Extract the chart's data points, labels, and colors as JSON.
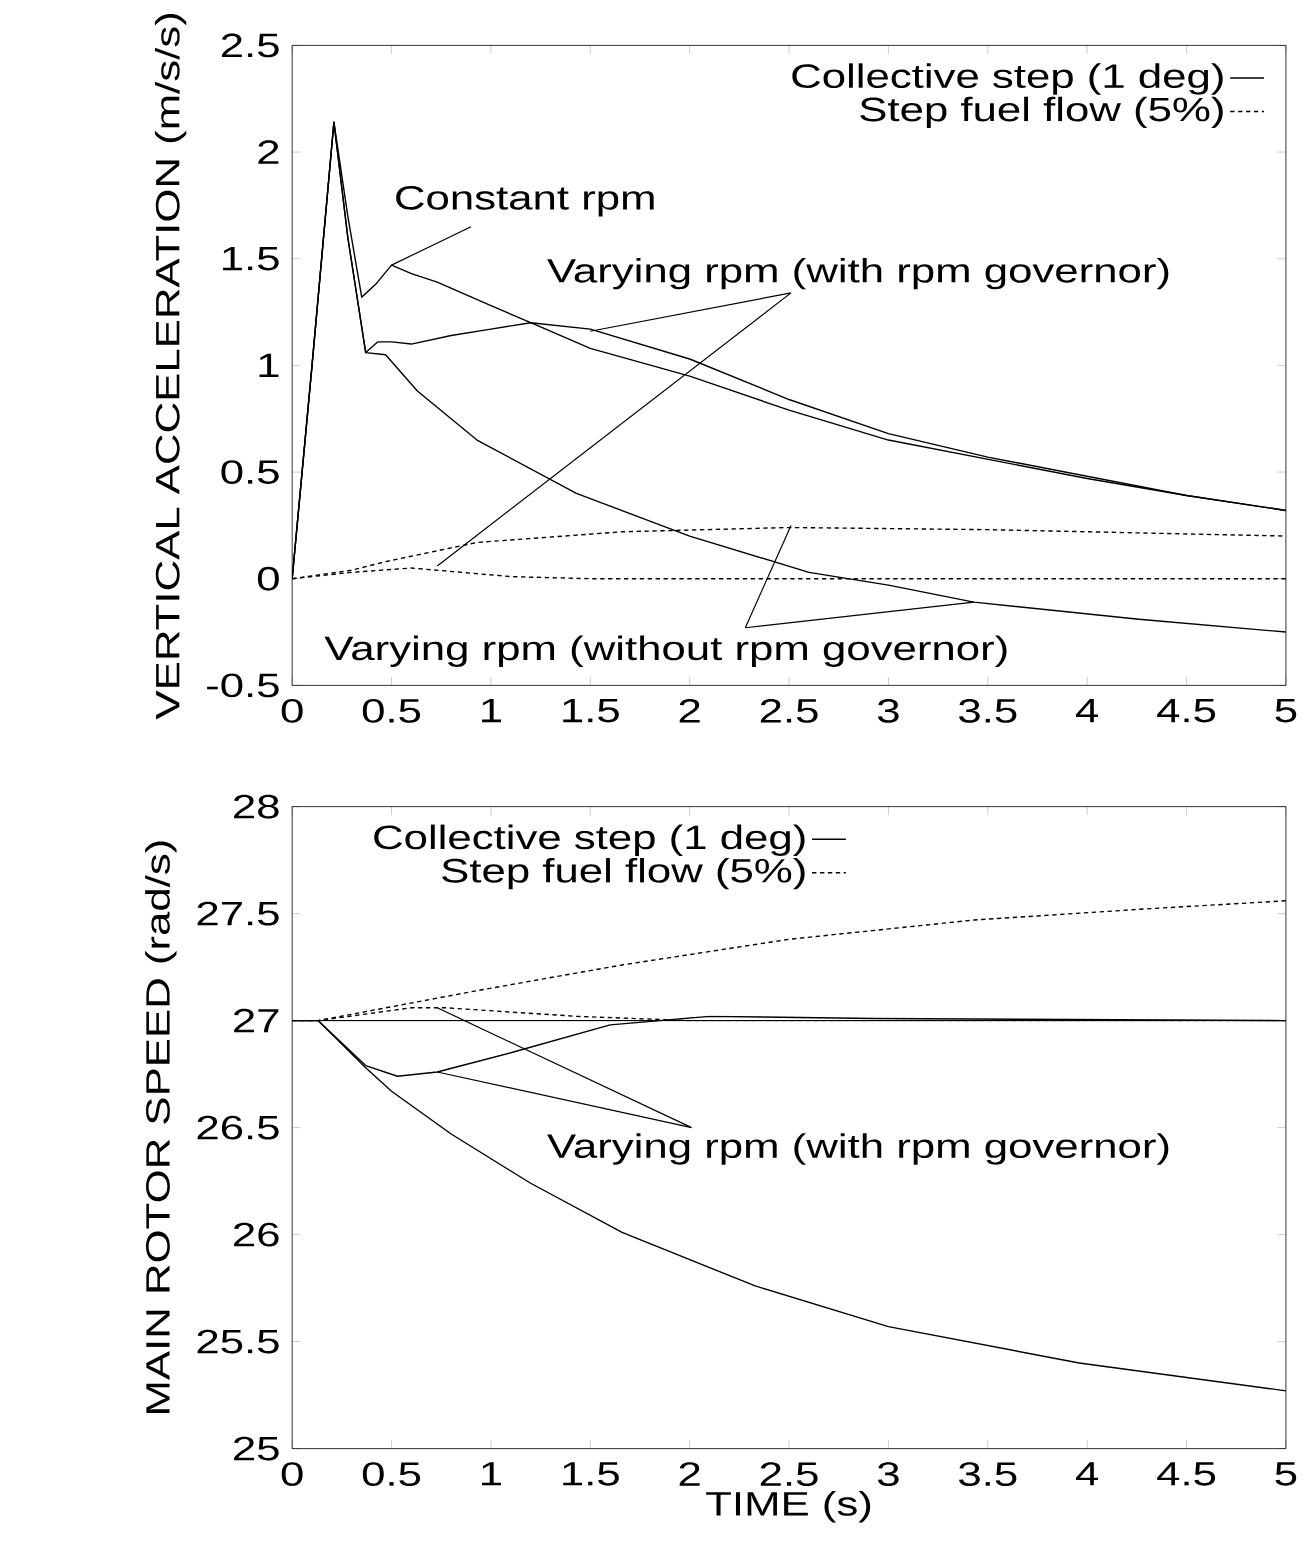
{
  "chart_data": [
    {
      "type": "line",
      "ylabel": "VERTICAL ACCELERATION (m/s/s)",
      "xlim": [
        0,
        5
      ],
      "ylim": [
        -0.5,
        2.5
      ],
      "xticks": [
        0,
        0.5,
        1,
        1.5,
        2,
        2.5,
        3,
        3.5,
        4,
        4.5,
        5
      ],
      "yticks": [
        -0.5,
        0,
        0.5,
        1,
        1.5,
        2,
        2.5
      ],
      "legend": "top right",
      "annotations": [
        {
          "text": "Constant rpm",
          "x": 0.5,
          "y": 1.47
        },
        {
          "text": "Varying rpm (with rpm governor)",
          "x": 1.5,
          "y": 1.16
        },
        {
          "text": "Varying rpm (without rpm governor)",
          "x": 3.43,
          "y": -0.11
        }
      ],
      "series": [
        {
          "name": "Collective step (1 deg)",
          "color": "#000000",
          "line_style": "solid",
          "x": [
            0,
            0.1,
            0.21,
            0.28,
            0.35,
            0.42,
            0.5,
            0.6,
            0.73,
            1.0,
            1.2,
            1.5,
            2.0,
            2.5,
            3.0,
            3.5,
            4.0,
            4.5,
            5.0
          ],
          "values": [
            0,
            1.0,
            2.14,
            1.7,
            1.32,
            1.38,
            1.47,
            1.43,
            1.39,
            1.28,
            1.2,
            1.08,
            0.95,
            0.79,
            0.65,
            0.56,
            0.47,
            0.39,
            0.32
          ]
        },
        {
          "name": "Step fuel flow (5%)",
          "color": "#000000",
          "line_style": "dashed",
          "x": [
            0,
            0.3,
            0.47,
            0.93,
            1.66,
            2.5,
            3.5,
            5.0
          ],
          "values": [
            0,
            0.04,
            0.08,
            0.17,
            0.22,
            0.24,
            0.23,
            0.2
          ]
        },
        {
          "color": "#000000",
          "line_style": "solid",
          "x": [
            0,
            0.1,
            0.21,
            0.28,
            0.37,
            0.43,
            0.5,
            0.6,
            0.8,
            1.0,
            1.2,
            1.5,
            2.0,
            2.5,
            3.0,
            3.5,
            4.0,
            4.5,
            5.0
          ],
          "values": [
            0,
            1.0,
            2.14,
            1.6,
            1.06,
            1.11,
            1.11,
            1.1,
            1.14,
            1.17,
            1.2,
            1.17,
            1.03,
            0.84,
            0.68,
            0.57,
            0.48,
            0.39,
            0.32
          ]
        },
        {
          "color": "#000000",
          "line_style": "solid",
          "x": [
            0,
            0.1,
            0.21,
            0.28,
            0.37,
            0.47,
            0.63,
            0.93,
            1.43,
            2.0,
            2.6,
            3.0,
            3.43,
            4.26,
            5.0
          ],
          "values": [
            0,
            1.0,
            2.14,
            1.6,
            1.06,
            1.05,
            0.88,
            0.65,
            0.4,
            0.2,
            0.03,
            -0.03,
            -0.11,
            -0.19,
            -0.25
          ]
        },
        {
          "color": "#000000",
          "line_style": "dashed",
          "x": [
            0,
            0.3,
            0.6,
            1.1,
            1.5,
            2.5,
            5.0
          ],
          "values": [
            0,
            0.03,
            0.05,
            0.01,
            0,
            0,
            0
          ]
        }
      ]
    },
    {
      "type": "line",
      "xlabel": "TIME (s)",
      "ylabel": "MAIN ROTOR SPEED (rad/s)",
      "xlim": [
        0,
        5
      ],
      "ylim": [
        25,
        28
      ],
      "xticks": [
        0,
        0.5,
        1,
        1.5,
        2,
        2.5,
        3,
        3.5,
        4,
        4.5,
        5
      ],
      "yticks": [
        25,
        25.5,
        26,
        26.5,
        27,
        27.5,
        28
      ],
      "legend": "top left",
      "annotations": [
        {
          "text": "Varying rpm (with rpm governor)",
          "x": 0.73,
          "y": 26.76
        }
      ],
      "series": [
        {
          "name": "Collective step (1 deg)",
          "color": "#000000",
          "line_style": "solid",
          "x": [
            0,
            5
          ],
          "values": [
            27,
            27
          ]
        },
        {
          "name": "Step fuel flow (5%)",
          "color": "#000000",
          "line_style": "dashed",
          "x": [
            0,
            0.13,
            0.93,
            1.66,
            2.5,
            3.43,
            4.26,
            5
          ],
          "values": [
            27,
            27,
            27.14,
            27.26,
            27.38,
            27.47,
            27.52,
            27.56
          ]
        },
        {
          "color": "#000000",
          "line_style": "solid",
          "x": [
            0,
            0.13,
            0.37,
            0.53,
            0.73,
            1.1,
            1.6,
            2.1,
            2.93,
            5
          ],
          "values": [
            27,
            27,
            26.79,
            26.74,
            26.76,
            26.85,
            26.98,
            27.02,
            27.01,
            27
          ]
        },
        {
          "color": "#000000",
          "line_style": "solid",
          "x": [
            0,
            0.13,
            0.37,
            0.5,
            0.8,
            1.2,
            1.66,
            2.33,
            3.0,
            3.96,
            5
          ],
          "values": [
            27,
            27,
            26.78,
            26.67,
            26.47,
            26.24,
            26.01,
            25.76,
            25.57,
            25.4,
            25.27
          ]
        },
        {
          "color": "#000000",
          "line_style": "dashed",
          "x": [
            0,
            0.13,
            0.6,
            0.77,
            1.43,
            2.0,
            5
          ],
          "values": [
            27,
            27,
            27.06,
            27.06,
            27.02,
            27,
            27
          ]
        }
      ]
    }
  ]
}
